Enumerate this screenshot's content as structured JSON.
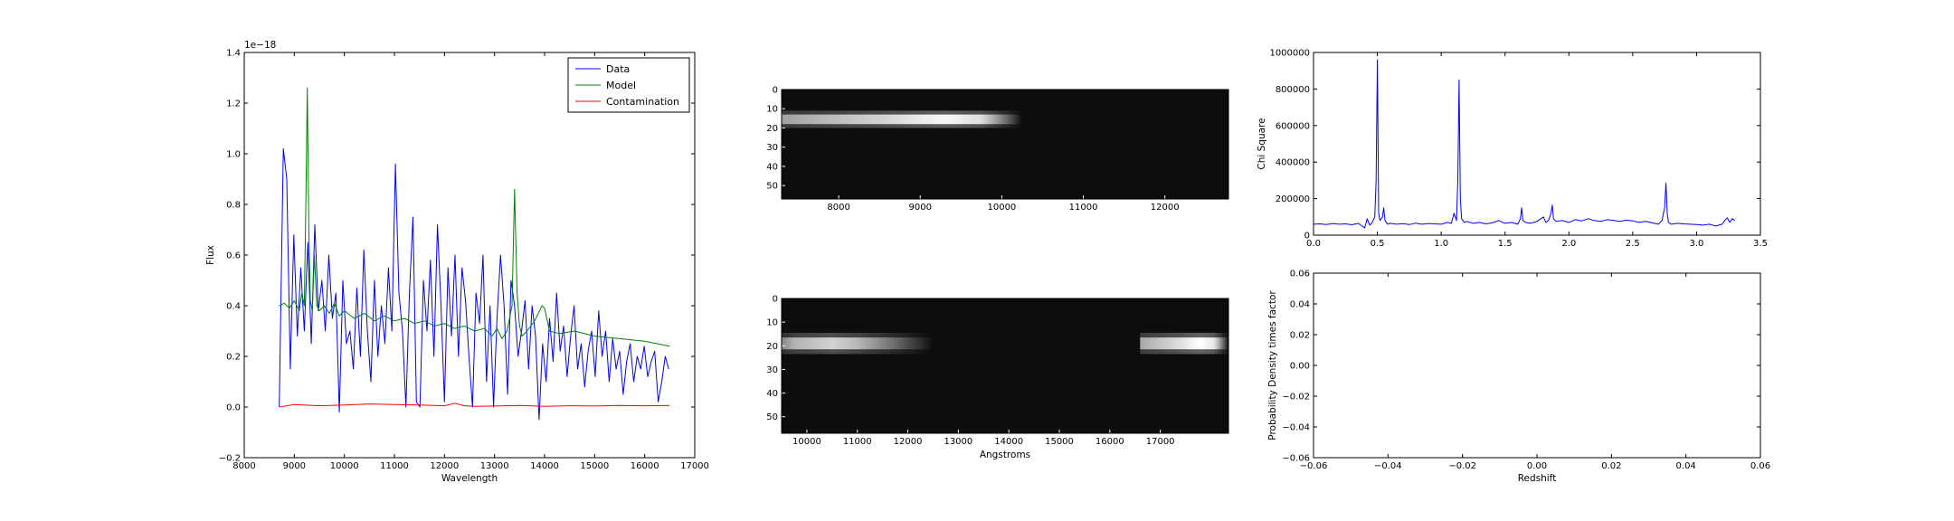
{
  "chart_data": [
    {
      "type": "line",
      "xlabel": "Wavelength",
      "ylabel": "Flux",
      "offset_text": "1e−18",
      "xlim": [
        8000,
        17000
      ],
      "ylim": [
        -0.2,
        1.4
      ],
      "xticks": [
        8000,
        9000,
        10000,
        11000,
        12000,
        13000,
        14000,
        15000,
        16000,
        17000
      ],
      "yticks": [
        -0.2,
        0.0,
        0.2,
        0.4,
        0.6,
        0.8,
        1.0,
        1.2,
        1.4
      ],
      "legend_position": "top-right",
      "series": [
        {
          "name": "Data",
          "color": "#0000ff",
          "x": [
            8700,
            8780,
            8850,
            8920,
            8990,
            9060,
            9130,
            9200,
            9270,
            9340,
            9410,
            9480,
            9550,
            9620,
            9690,
            9760,
            9830,
            9900,
            9970,
            10040,
            10110,
            10180,
            10250,
            10320,
            10390,
            10460,
            10530,
            10600,
            10670,
            10740,
            10810,
            10880,
            10950,
            11020,
            11090,
            11160,
            11230,
            11300,
            11370,
            11440,
            11510,
            11580,
            11650,
            11720,
            11790,
            11860,
            11930,
            12000,
            12070,
            12140,
            12210,
            12280,
            12350,
            12420,
            12490,
            12560,
            12630,
            12700,
            12770,
            12840,
            12910,
            12980,
            13050,
            13120,
            13190,
            13260,
            13330,
            13400,
            13470,
            13540,
            13610,
            13680,
            13750,
            13820,
            13890,
            13960,
            14030,
            14100,
            14170,
            14240,
            14310,
            14380,
            14450,
            14520,
            14590,
            14660,
            14730,
            14800,
            14870,
            14940,
            15010,
            15080,
            15150,
            15220,
            15290,
            15360,
            15430,
            15500,
            15570,
            15640,
            15710,
            15780,
            15850,
            15920,
            15990,
            16060,
            16130,
            16200,
            16270,
            16340,
            16410,
            16480
          ],
          "y": [
            0.0,
            1.02,
            0.9,
            0.15,
            0.68,
            0.28,
            0.55,
            0.3,
            0.65,
            0.25,
            0.72,
            0.38,
            0.5,
            0.3,
            0.6,
            0.35,
            0.45,
            -0.02,
            0.5,
            0.25,
            0.3,
            0.15,
            0.47,
            0.2,
            0.62,
            0.3,
            0.1,
            0.5,
            0.2,
            0.4,
            0.25,
            0.55,
            0.3,
            0.96,
            0.45,
            0.3,
            0.0,
            0.45,
            0.75,
            0.02,
            0.0,
            0.5,
            0.3,
            0.58,
            0.2,
            0.72,
            0.4,
            0.02,
            0.55,
            0.28,
            0.6,
            0.2,
            0.55,
            0.42,
            0.2,
            0.0,
            0.45,
            0.33,
            0.6,
            0.1,
            0.4,
            0.0,
            0.35,
            0.6,
            0.4,
            0.05,
            0.5,
            0.4,
            0.2,
            0.3,
            0.42,
            0.15,
            0.4,
            0.28,
            -0.05,
            0.25,
            0.1,
            0.35,
            0.18,
            0.45,
            0.22,
            0.32,
            0.12,
            0.28,
            0.4,
            0.15,
            0.25,
            0.08,
            0.22,
            0.3,
            0.12,
            0.38,
            0.2,
            0.3,
            0.1,
            0.27,
            0.15,
            0.22,
            0.05,
            0.18,
            0.25,
            0.1,
            0.2,
            0.15,
            0.24,
            0.12,
            0.18,
            0.22,
            0.02,
            0.1,
            0.2,
            0.15
          ]
        },
        {
          "name": "Model",
          "color": "#008000",
          "x": [
            8700,
            8800,
            8900,
            9000,
            9100,
            9150,
            9200,
            9230,
            9260,
            9290,
            9320,
            9360,
            9400,
            9450,
            9500,
            9600,
            9700,
            9800,
            9900,
            10000,
            10200,
            10400,
            10600,
            10800,
            11000,
            11200,
            11400,
            11600,
            11800,
            12000,
            12200,
            12400,
            12600,
            12800,
            12950,
            13050,
            13150,
            13250,
            13350,
            13400,
            13450,
            13500,
            13550,
            13650,
            13800,
            13950,
            14000,
            14100,
            14300,
            14600,
            15000,
            15500,
            16000,
            16500
          ],
          "y": [
            0.4,
            0.41,
            0.39,
            0.42,
            0.38,
            0.45,
            0.4,
            0.8,
            1.26,
            0.7,
            0.42,
            0.38,
            0.6,
            0.4,
            0.38,
            0.4,
            0.37,
            0.41,
            0.36,
            0.38,
            0.35,
            0.37,
            0.34,
            0.36,
            0.34,
            0.35,
            0.33,
            0.34,
            0.32,
            0.33,
            0.31,
            0.32,
            0.3,
            0.31,
            0.28,
            0.31,
            0.27,
            0.3,
            0.4,
            0.86,
            0.45,
            0.32,
            0.28,
            0.3,
            0.34,
            0.4,
            0.39,
            0.3,
            0.29,
            0.3,
            0.28,
            0.27,
            0.26,
            0.24
          ]
        },
        {
          "name": "Contamination",
          "color": "#ff0000",
          "x": [
            8700,
            9000,
            9500,
            10000,
            10500,
            11000,
            11500,
            12000,
            12200,
            12400,
            12600,
            13000,
            13500,
            14000,
            14500,
            15000,
            15500,
            16000,
            16500
          ],
          "y": [
            0.0,
            0.01,
            0.005,
            0.008,
            0.012,
            0.01,
            0.008,
            0.005,
            0.015,
            0.005,
            0.003,
            0.004,
            0.006,
            0.003,
            0.005,
            0.004,
            0.006,
            0.005,
            0.006
          ]
        }
      ]
    },
    {
      "type": "heatmap",
      "colormap": "gray",
      "xlim": [
        7300,
        12780
      ],
      "ylim": [
        57,
        0
      ],
      "xticks": [
        8000,
        9000,
        10000,
        11000,
        12000
      ],
      "yticks": [
        0,
        10,
        20,
        30,
        40,
        50
      ],
      "trace": {
        "row": 15.5,
        "x_start": 7300,
        "x_end": 10250,
        "peak_x": 9300,
        "peak_intensity": 0.95
      }
    },
    {
      "type": "heatmap",
      "colormap": "gray",
      "xlabel": "Angstroms",
      "xlim": [
        9500,
        18350
      ],
      "ylim": [
        57,
        0
      ],
      "xticks": [
        10000,
        11000,
        12000,
        13000,
        14000,
        15000,
        16000,
        17000
      ],
      "yticks": [
        0,
        10,
        20,
        30,
        40,
        50
      ],
      "traces": [
        {
          "row": 19,
          "x_start": 9500,
          "x_end": 12500,
          "peak_x": 10500,
          "peak_intensity": 0.75
        },
        {
          "row": 19,
          "x_start": 16600,
          "x_end": 18350,
          "peak_x": 17800,
          "peak_intensity": 1.0
        }
      ]
    },
    {
      "type": "line",
      "ylabel": "Chi Square",
      "xlim": [
        0.0,
        3.5
      ],
      "ylim": [
        0,
        1000000
      ],
      "xticks": [
        0.0,
        0.5,
        1.0,
        1.5,
        2.0,
        2.5,
        3.0,
        3.5
      ],
      "yticks": [
        0,
        200000,
        400000,
        600000,
        800000,
        1000000
      ],
      "series": [
        {
          "color": "#0000ff",
          "x": [
            0.0,
            0.05,
            0.1,
            0.15,
            0.2,
            0.25,
            0.3,
            0.35,
            0.4,
            0.42,
            0.44,
            0.46,
            0.48,
            0.49,
            0.5,
            0.51,
            0.52,
            0.54,
            0.55,
            0.56,
            0.58,
            0.6,
            0.65,
            0.7,
            0.75,
            0.8,
            0.85,
            0.9,
            0.95,
            1.0,
            1.05,
            1.08,
            1.1,
            1.12,
            1.13,
            1.14,
            1.15,
            1.16,
            1.18,
            1.2,
            1.25,
            1.3,
            1.35,
            1.4,
            1.45,
            1.5,
            1.55,
            1.6,
            1.62,
            1.63,
            1.64,
            1.66,
            1.7,
            1.75,
            1.8,
            1.82,
            1.84,
            1.86,
            1.87,
            1.88,
            1.9,
            1.95,
            2.0,
            2.05,
            2.1,
            2.15,
            2.2,
            2.25,
            2.3,
            2.35,
            2.4,
            2.45,
            2.5,
            2.55,
            2.6,
            2.65,
            2.7,
            2.73,
            2.75,
            2.76,
            2.77,
            2.78,
            2.8,
            2.85,
            2.9,
            2.95,
            3.0,
            3.05,
            3.1,
            3.15,
            3.2,
            3.22,
            3.24,
            3.26,
            3.28,
            3.3
          ],
          "y": [
            60000,
            62000,
            58000,
            64000,
            60000,
            62000,
            57000,
            65000,
            40000,
            90000,
            55000,
            70000,
            100000,
            300000,
            960000,
            120000,
            80000,
            100000,
            150000,
            80000,
            60000,
            65000,
            60000,
            63000,
            58000,
            66000,
            60000,
            64000,
            62000,
            60000,
            70000,
            65000,
            120000,
            80000,
            300000,
            850000,
            200000,
            90000,
            70000,
            75000,
            65000,
            70000,
            62000,
            68000,
            80000,
            65000,
            70000,
            60000,
            90000,
            150000,
            80000,
            70000,
            65000,
            75000,
            100000,
            70000,
            80000,
            120000,
            165000,
            90000,
            75000,
            80000,
            70000,
            85000,
            78000,
            90000,
            80000,
            75000,
            85000,
            80000,
            75000,
            82000,
            78000,
            70000,
            75000,
            68000,
            60000,
            80000,
            150000,
            285000,
            120000,
            70000,
            60000,
            65000,
            62000,
            60000,
            58000,
            55000,
            60000,
            50000,
            60000,
            80000,
            95000,
            70000,
            90000,
            80000
          ]
        }
      ]
    },
    {
      "type": "line",
      "xlabel": "Redshift",
      "ylabel": "Probability Density times factor",
      "xlim": [
        -0.06,
        0.06
      ],
      "ylim": [
        -0.06,
        0.06
      ],
      "xticks": [
        -0.06,
        -0.04,
        -0.02,
        0.0,
        0.02,
        0.04,
        0.06
      ],
      "yticks": [
        -0.06,
        -0.04,
        -0.02,
        0.0,
        0.02,
        0.04,
        0.06
      ],
      "series": []
    }
  ]
}
